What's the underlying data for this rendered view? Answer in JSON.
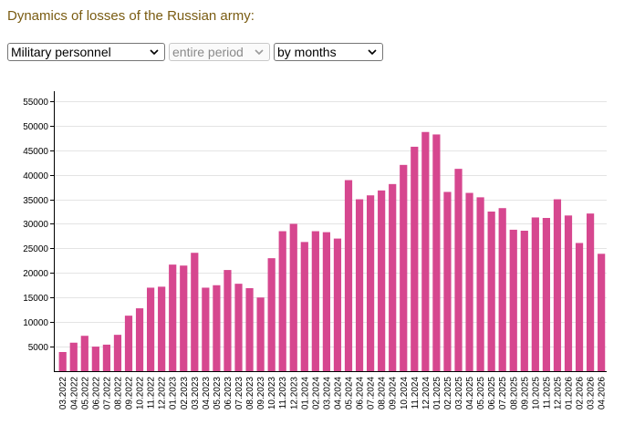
{
  "page_title": "Dynamics of losses of the Russian army:",
  "filters": {
    "category": "Military personnel",
    "period": "entire period",
    "grouping": "by months"
  },
  "icons": {
    "dropdown": "chevron-down-icon"
  },
  "colors": {
    "bar": "#d6478f",
    "title": "#7a5c12",
    "grid": "#e4e4e4",
    "axis": "#000000"
  },
  "chart_data": {
    "type": "bar",
    "title": "",
    "xlabel": "",
    "ylabel": "",
    "ylim": [
      0,
      57000
    ],
    "yticks": [
      "5000",
      "10000",
      "15000",
      "20000",
      "25000",
      "30000",
      "35000",
      "40000",
      "45000",
      "50000",
      "55000"
    ],
    "categories": [
      "03.2022",
      "04.2022",
      "05.2022",
      "06.2022",
      "07.2022",
      "08.2022",
      "09.2022",
      "10.2022",
      "11.2022",
      "12.2022",
      "01.2023",
      "02.2023",
      "03.2023",
      "04.2023",
      "05.2023",
      "06.2023",
      "07.2023",
      "08.2023",
      "09.2023",
      "10.2023",
      "11.2023",
      "12.2023",
      "01.2024",
      "02.2024",
      "03.2024",
      "04.2024",
      "05.2024",
      "06.2024",
      "07.2024",
      "08.2024",
      "09.2024",
      "10.2024",
      "11.2024",
      "12.2024",
      "01.2025",
      "02.2025",
      "03.2025",
      "04.2025",
      "05.2025",
      "06.2025",
      "07.2025",
      "08.2025",
      "09.2025",
      "10.2025",
      "11.2025",
      "12.2025",
      "01.2026",
      "02.2026",
      "03.2026",
      "04.2026"
    ],
    "series": [
      {
        "name": "Military personnel",
        "values": [
          3900,
          5800,
          7200,
          5000,
          5400,
          7400,
          11300,
          12800,
          17000,
          17200,
          21700,
          21500,
          24100,
          17000,
          17500,
          20600,
          17800,
          16900,
          15000,
          23000,
          28500,
          30000,
          26300,
          28500,
          28300,
          27000,
          38900,
          35000,
          35800,
          36800,
          38100,
          42000,
          45700,
          48700,
          48200,
          36500,
          41200,
          36300,
          35400,
          32500,
          33200,
          28800,
          28600,
          31300,
          31200,
          35000,
          31700,
          26100,
          32100,
          23900
        ]
      }
    ],
    "grid": true,
    "legend": "none"
  }
}
